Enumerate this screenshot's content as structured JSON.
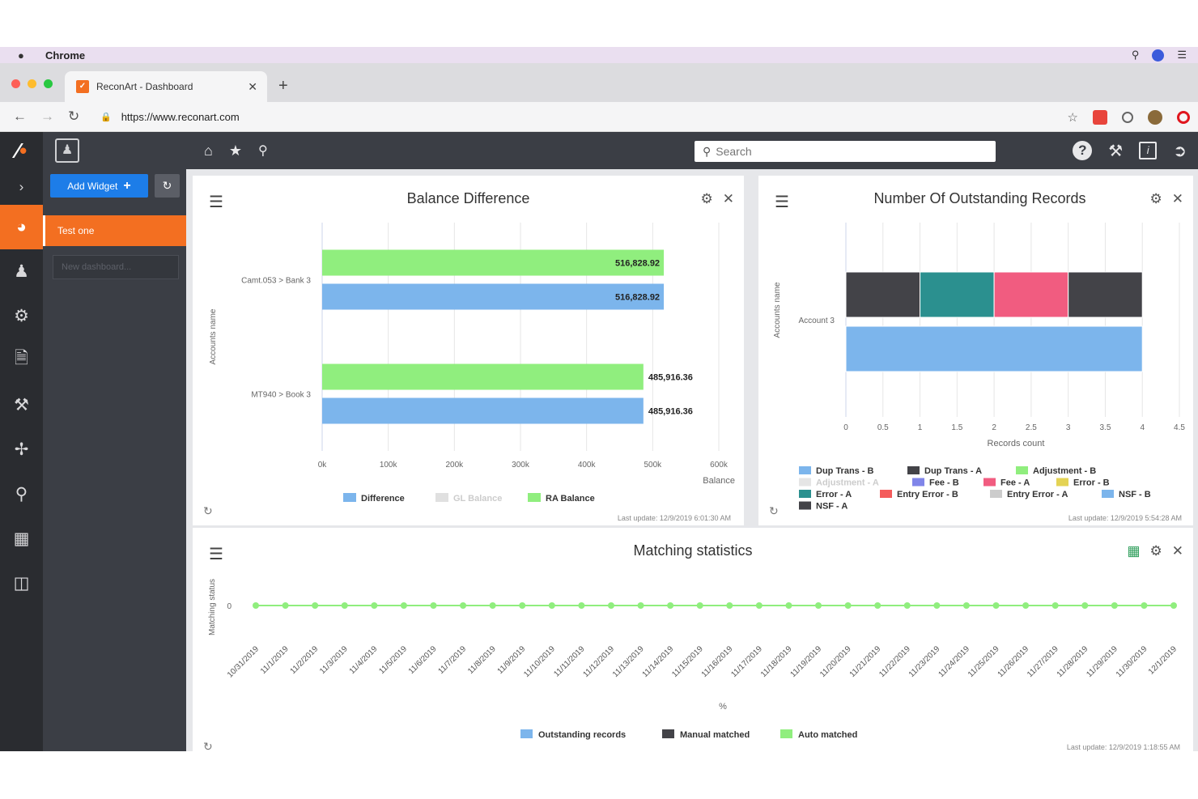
{
  "os": {
    "app_name": "Chrome"
  },
  "browser": {
    "tab_title": "ReconArt - Dashboard",
    "url": "https://www.reconart.com"
  },
  "app": {
    "search_placeholder": "Search",
    "add_widget_label": "Add Widget",
    "dashboard_item": "Test one",
    "new_dashboard_placeholder": "New dashboard...",
    "accent_color": "#f36f21",
    "primary_button_color": "#1d7de8"
  },
  "panels": {
    "balance": {
      "title": "Balance Difference",
      "last_update": "Last update: 12/9/2019 6:01:30 AM"
    },
    "outstanding": {
      "title": "Number Of Outstanding Records",
      "last_update": "Last update: 12/9/2019 5:54:28 AM"
    },
    "matching": {
      "title": "Matching statistics",
      "last_update": "Last update: 12/9/2019 1:18:55 AM"
    }
  },
  "chart_data": [
    {
      "type": "bar",
      "orientation": "horizontal",
      "title": "Balance Difference",
      "xlabel": "Balance",
      "ylabel": "Accounts name",
      "categories": [
        "Camt.053 > Bank 3",
        "MT940 > Book 3"
      ],
      "series": [
        {
          "name": "RA Balance",
          "color": "#90ee7e",
          "values": [
            516828.92,
            485916.36
          ],
          "labels": [
            "516,828.92",
            "485,916.36"
          ]
        },
        {
          "name": "Difference",
          "color": "#7cb5ec",
          "values": [
            516828.92,
            485916.36
          ],
          "labels": [
            "516,828.92",
            "485,916.36"
          ]
        }
      ],
      "legend": [
        {
          "name": "Difference",
          "color": "#7cb5ec",
          "dim": false
        },
        {
          "name": "GL Balance",
          "color": "#cccccc",
          "dim": true
        },
        {
          "name": "RA Balance",
          "color": "#90ee7e",
          "dim": false
        }
      ],
      "xticks": [
        "0k",
        "100k",
        "200k",
        "300k",
        "400k",
        "500k",
        "600k"
      ],
      "xlim": [
        0,
        600000
      ],
      "grid": true,
      "legend_position": "bottom"
    },
    {
      "type": "bar",
      "orientation": "horizontal",
      "stacked": true,
      "title": "Number Of Outstanding Records",
      "xlabel": "Records count",
      "ylabel": "Accounts name",
      "categories": [
        "Account 3"
      ],
      "stack_rows": [
        {
          "segments": [
            {
              "color": "#434348",
              "value": 1
            },
            {
              "color": "#2b908f",
              "value": 1
            },
            {
              "color": "#f15c80",
              "value": 1
            },
            {
              "color": "#434348",
              "value": 1
            }
          ]
        },
        {
          "segments": [
            {
              "color": "#7cb5ec",
              "value": 4
            }
          ]
        }
      ],
      "xticks": [
        "0",
        "0.5",
        "1",
        "1.5",
        "2",
        "2.5",
        "3",
        "3.5",
        "4",
        "4.5"
      ],
      "xlim": [
        0,
        4.5
      ],
      "grid": true,
      "legend_position": "bottom",
      "legend": [
        {
          "name": "Dup Trans - B",
          "color": "#7cb5ec",
          "dim": false
        },
        {
          "name": "Dup Trans - A",
          "color": "#434348",
          "dim": false
        },
        {
          "name": "Adjustment - B",
          "color": "#90ee7e",
          "dim": false
        },
        {
          "name": "Adjustment - A",
          "color": "#cccccc",
          "dim": true
        },
        {
          "name": "Fee - B",
          "color": "#8085e9",
          "dim": false
        },
        {
          "name": "Fee - A",
          "color": "#f15c80",
          "dim": false
        },
        {
          "name": "Error - B",
          "color": "#e4d354",
          "dim": false
        },
        {
          "name": "Error - A",
          "color": "#2b908f",
          "dim": false
        },
        {
          "name": "Entry Error - B",
          "color": "#f45b5b",
          "dim": false
        },
        {
          "name": "Entry Error - A",
          "color": "#cccccc",
          "dim": false
        },
        {
          "name": "NSF - B",
          "color": "#7cb5ec",
          "dim": false
        },
        {
          "name": "NSF - A",
          "color": "#434348",
          "dim": false
        }
      ]
    },
    {
      "type": "line",
      "title": "Matching statistics",
      "xlabel": "%",
      "ylabel": "Matching status",
      "yticks": [
        "0"
      ],
      "x": [
        "10/31/2019",
        "11/1/2019",
        "11/2/2019",
        "11/3/2019",
        "11/4/2019",
        "11/5/2019",
        "11/6/2019",
        "11/7/2019",
        "11/8/2019",
        "11/9/2019",
        "11/10/2019",
        "11/11/2019",
        "11/12/2019",
        "11/13/2019",
        "11/14/2019",
        "11/15/2019",
        "11/16/2019",
        "11/17/2019",
        "11/18/2019",
        "11/19/2019",
        "11/20/2019",
        "11/21/2019",
        "11/22/2019",
        "11/23/2019",
        "11/24/2019",
        "11/25/2019",
        "11/26/2019",
        "11/27/2019",
        "11/28/2019",
        "11/29/2019",
        "11/30/2019",
        "12/1/2019"
      ],
      "series": [
        {
          "name": "Auto matched",
          "color": "#90ee7e",
          "values": [
            0,
            0,
            0,
            0,
            0,
            0,
            0,
            0,
            0,
            0,
            0,
            0,
            0,
            0,
            0,
            0,
            0,
            0,
            0,
            0,
            0,
            0,
            0,
            0,
            0,
            0,
            0,
            0,
            0,
            0,
            0,
            0
          ]
        }
      ],
      "legend": [
        {
          "name": "Outstanding records",
          "color": "#7cb5ec"
        },
        {
          "name": "Manual matched",
          "color": "#434348"
        },
        {
          "name": "Auto matched",
          "color": "#90ee7e"
        }
      ],
      "grid": false,
      "legend_position": "bottom"
    }
  ]
}
